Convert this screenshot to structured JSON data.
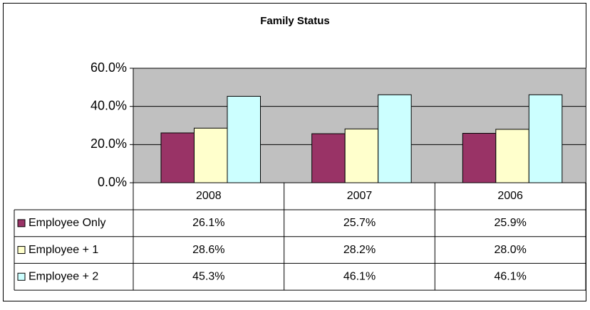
{
  "chart_data": {
    "type": "bar",
    "title": "Family Status",
    "categories": [
      "2008",
      "2007",
      "2006"
    ],
    "series": [
      {
        "name": "Employee Only",
        "color": "#993366",
        "values": [
          26.1,
          25.7,
          25.9
        ],
        "value_labels": [
          "26.1%",
          "25.7%",
          "25.9%"
        ]
      },
      {
        "name": "Employee + 1",
        "color": "#ffffcc",
        "values": [
          28.6,
          28.2,
          28.0
        ],
        "value_labels": [
          "28.6%",
          "28.2%",
          "28.0%"
        ]
      },
      {
        "name": "Employee + 2",
        "color": "#ccffff",
        "values": [
          45.3,
          46.1,
          46.1
        ],
        "value_labels": [
          "45.3%",
          "46.1%",
          "46.1%"
        ]
      }
    ],
    "ylim": [
      0,
      60
    ],
    "yticks": [
      {
        "value": 0,
        "label": "0.0%"
      },
      {
        "value": 20,
        "label": "20.0%"
      },
      {
        "value": 40,
        "label": "40.0%"
      },
      {
        "value": 60,
        "label": "60.0%"
      }
    ],
    "grid": true,
    "plot_background": "#c0c0c0"
  }
}
